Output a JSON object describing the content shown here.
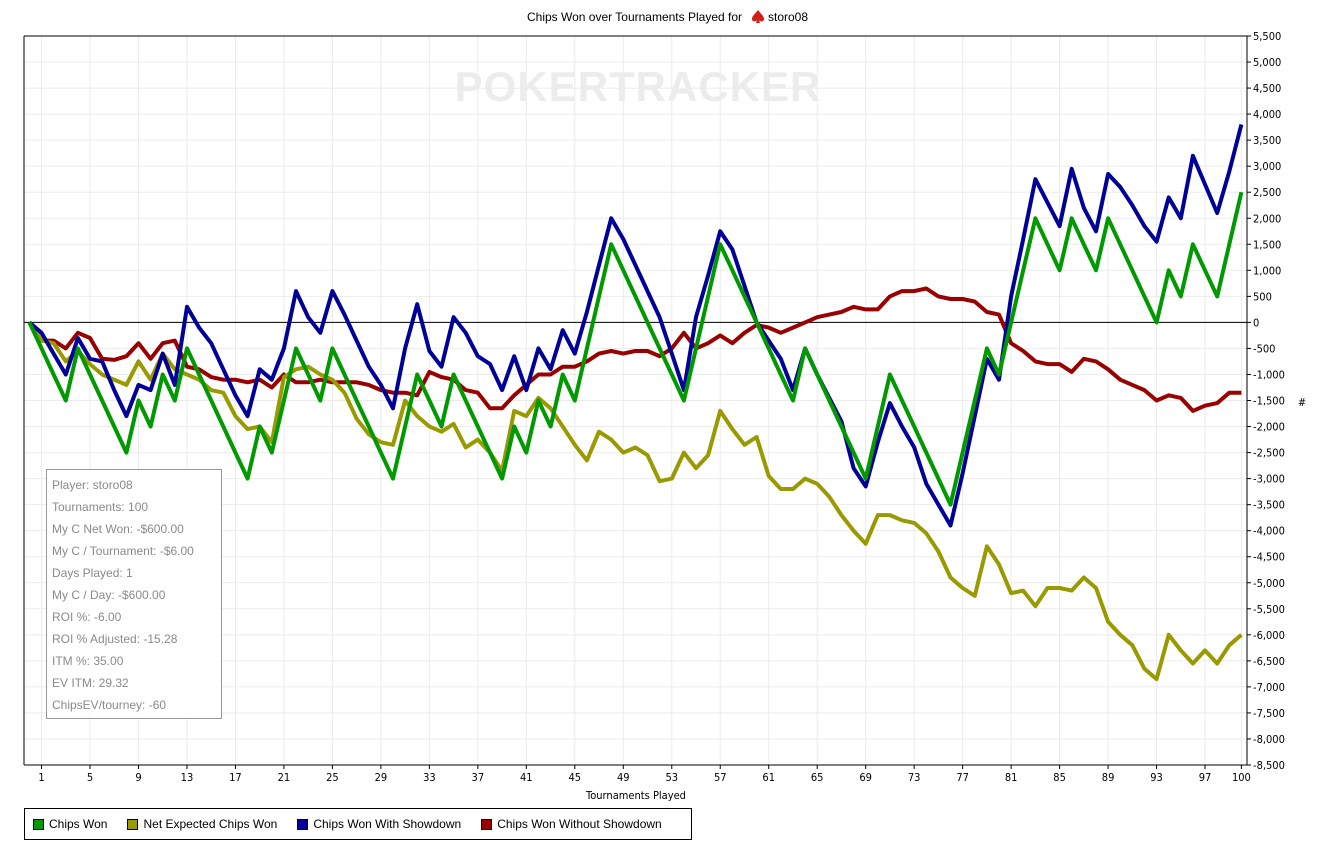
{
  "chart_data": {
    "type": "line",
    "title": "Chips Won over Tournaments Played for",
    "title_player": "storo08",
    "xlabel": "Tournaments Played",
    "ylabel": "#",
    "watermark": "POKERTRACKER",
    "xlim": [
      0,
      100
    ],
    "ylim": [
      -8500,
      5500
    ],
    "x_ticks": [
      1,
      5,
      9,
      13,
      17,
      21,
      25,
      29,
      33,
      37,
      41,
      45,
      49,
      53,
      57,
      61,
      65,
      69,
      73,
      77,
      81,
      85,
      89,
      93,
      97,
      100
    ],
    "y_ticks": [
      5500,
      5000,
      4500,
      4000,
      3500,
      3000,
      2500,
      2000,
      1500,
      1000,
      500,
      0,
      -500,
      -1000,
      -1500,
      -2000,
      -2500,
      -3000,
      -3500,
      -4000,
      -4500,
      -5000,
      -5500,
      -6000,
      -6500,
      -7000,
      -7500,
      -8000,
      -8500
    ],
    "grid": true,
    "legend_position": "bottom-left",
    "series": [
      {
        "name": "Chips Won",
        "color": "#009900",
        "values": [
          0,
          -500,
          -1000,
          -1500,
          -500,
          -1000,
          -1500,
          -2000,
          -2500,
          -1500,
          -2000,
          -1000,
          -1500,
          -500,
          -1000,
          -1500,
          -2000,
          -2500,
          -3000,
          -2000,
          -2500,
          -1500,
          -500,
          -1000,
          -1500,
          -500,
          -1000,
          -1500,
          -2000,
          -2500,
          -3000,
          -2000,
          -1000,
          -1500,
          -2000,
          -1000,
          -1500,
          -2000,
          -2500,
          -3000,
          -2000,
          -2500,
          -1500,
          -2000,
          -1000,
          -1500,
          -500,
          500,
          1500,
          1000,
          500,
          0,
          -500,
          -1000,
          -1500,
          -500,
          500,
          1500,
          1000,
          500,
          0,
          -500,
          -1000,
          -1500,
          -500,
          -1000,
          -1500,
          -2000,
          -2500,
          -3000,
          -2000,
          -1000,
          -1500,
          -2000,
          -2500,
          -3000,
          -3500,
          -2500,
          -1500,
          -500,
          -1000,
          0,
          1000,
          2000,
          1500,
          1000,
          2000,
          1500,
          1000,
          2000,
          1500,
          1000,
          500,
          0,
          1000,
          500,
          1500,
          1000,
          500,
          1500,
          2500
        ]
      },
      {
        "name": "Net Expected Chips Won",
        "color": "#999900",
        "values": [
          0,
          -350,
          -400,
          -750,
          -550,
          -800,
          -1000,
          -1100,
          -1200,
          -750,
          -1100,
          -600,
          -900,
          -1000,
          -1100,
          -1300,
          -1350,
          -1800,
          -2050,
          -2000,
          -2300,
          -1050,
          -900,
          -850,
          -1000,
          -1100,
          -1350,
          -1850,
          -2150,
          -2300,
          -2350,
          -1500,
          -1800,
          -2000,
          -2100,
          -1950,
          -2400,
          -2250,
          -2500,
          -2850,
          -1700,
          -1800,
          -1450,
          -1650,
          -2000,
          -2350,
          -2650,
          -2100,
          -2250,
          -2500,
          -2400,
          -2550,
          -3050,
          -3000,
          -2500,
          -2800,
          -2550,
          -1700,
          -2050,
          -2350,
          -2200,
          -2950,
          -3200,
          -3200,
          -3000,
          -3100,
          -3350,
          -3700,
          -4000,
          -4250,
          -3700,
          -3700,
          -3800,
          -3850,
          -4050,
          -4400,
          -4900,
          -5100,
          -5250,
          -4300,
          -4650,
          -5200,
          -5150,
          -5450,
          -5100,
          -5100,
          -5150,
          -4900,
          -5100,
          -5750,
          -6000,
          -6200,
          -6650,
          -6850,
          -6000,
          -6300,
          -6550,
          -6300,
          -6550,
          -6200,
          -6000
        ]
      },
      {
        "name": "Chips Won With Showdown",
        "color": "#000099",
        "values": [
          0,
          -200,
          -600,
          -1000,
          -300,
          -700,
          -750,
          -1300,
          -1800,
          -1200,
          -1300,
          -600,
          -1200,
          300,
          -100,
          -400,
          -900,
          -1400,
          -1800,
          -900,
          -1100,
          -500,
          600,
          100,
          -200,
          600,
          150,
          -350,
          -850,
          -1200,
          -1650,
          -500,
          350,
          -550,
          -850,
          100,
          -200,
          -650,
          -800,
          -1300,
          -650,
          -1300,
          -500,
          -900,
          -150,
          -600,
          200,
          1100,
          2000,
          1600,
          1100,
          600,
          100,
          -600,
          -1300,
          100,
          900,
          1750,
          1400,
          700,
          0,
          -350,
          -700,
          -1300,
          -500,
          -1000,
          -1450,
          -1900,
          -2800,
          -3150,
          -2300,
          -1550,
          -2000,
          -2400,
          -3100,
          -3500,
          -3900,
          -2900,
          -1800,
          -700,
          -1100,
          500,
          1600,
          2750,
          2300,
          1850,
          2950,
          2200,
          1750,
          2850,
          2600,
          2250,
          1850,
          1550,
          2400,
          2000,
          3200,
          2650,
          2100,
          2900,
          3800
        ]
      },
      {
        "name": "Chips Won Without Showdown",
        "color": "#990000",
        "values": [
          0,
          -350,
          -350,
          -500,
          -200,
          -300,
          -700,
          -720,
          -650,
          -400,
          -700,
          -400,
          -350,
          -850,
          -900,
          -1050,
          -1100,
          -1100,
          -1150,
          -1100,
          -1250,
          -1000,
          -1150,
          -1150,
          -1100,
          -1150,
          -1150,
          -1150,
          -1200,
          -1300,
          -1350,
          -1350,
          -1400,
          -950,
          -1050,
          -1100,
          -1300,
          -1350,
          -1650,
          -1650,
          -1400,
          -1200,
          -1000,
          -1000,
          -850,
          -850,
          -750,
          -600,
          -550,
          -600,
          -550,
          -550,
          -650,
          -500,
          -200,
          -500,
          -400,
          -250,
          -400,
          -200,
          -50,
          -100,
          -200,
          -100,
          0,
          100,
          150,
          200,
          300,
          250,
          250,
          500,
          600,
          600,
          650,
          500,
          450,
          450,
          400,
          200,
          150,
          -400,
          -550,
          -750,
          -800,
          -800,
          -950,
          -700,
          -750,
          -900,
          -1100,
          -1200,
          -1300,
          -1500,
          -1400,
          -1450,
          -1700,
          -1600,
          -1550,
          -1350,
          -1350
        ]
      }
    ]
  },
  "stats": [
    "Player: storo08",
    "Tournaments: 100",
    "My C Net Won: -$600.00",
    "My C / Tournament: -$6.00",
    "Days Played: 1",
    "My C / Day: -$600.00",
    "ROI %: -6.00",
    "ROI % Adjusted: -15.28",
    "ITM %: 35.00",
    "EV ITM: 29.32",
    "ChipsEV/tourney: -60"
  ]
}
